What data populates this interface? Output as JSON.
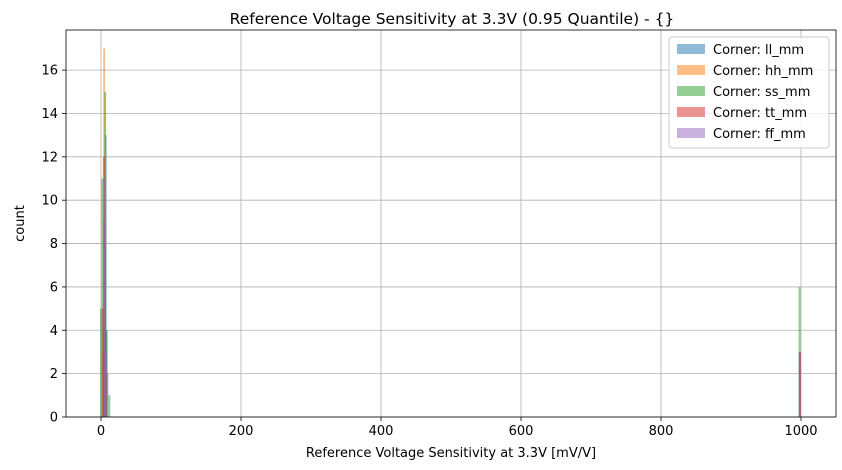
{
  "chart_data": {
    "type": "bar",
    "title": "Reference Voltage Sensitivity at 3.3V (0.95 Quantile) - {}",
    "xlabel": "Reference Voltage Sensitivity at 3.3V [mV/V]",
    "ylabel": "count",
    "xlim": [
      -50,
      1050
    ],
    "ylim": [
      0,
      17.85
    ],
    "xticks": [
      0,
      200,
      400,
      600,
      800,
      1000
    ],
    "yticks": [
      0,
      2,
      4,
      6,
      8,
      10,
      12,
      14,
      16
    ],
    "grid": true,
    "legend_position": "top-right",
    "bin_width": 1.2,
    "series": [
      {
        "name": "Corner: ll_mm",
        "color": "#1f77b4",
        "bins": [
          {
            "x": 4,
            "count": 9
          },
          {
            "x": 5.2,
            "count": 13
          },
          {
            "x": 6.4,
            "count": 4
          },
          {
            "x": 7.6,
            "count": 2
          },
          {
            "x": 997,
            "count": 3
          }
        ]
      },
      {
        "name": "Corner: hh_mm",
        "color": "#ff7f0e",
        "bins": [
          {
            "x": 2,
            "count": 3
          },
          {
            "x": 3.2,
            "count": 17
          },
          {
            "x": 4.4,
            "count": 9
          },
          {
            "x": 5.6,
            "count": 2
          },
          {
            "x": 997,
            "count": 3
          }
        ]
      },
      {
        "name": "Corner: ss_mm",
        "color": "#2ca02c",
        "bins": [
          {
            "x": -1.5,
            "count": 5
          },
          {
            "x": 0.5,
            "count": 11
          },
          {
            "x": 2.5,
            "count": 4
          },
          {
            "x": 4.5,
            "count": 15
          },
          {
            "x": 6.5,
            "count": 4
          },
          {
            "x": 10.5,
            "count": 1
          },
          {
            "x": 996.5,
            "count": 6
          }
        ]
      },
      {
        "name": "Corner: tt_mm",
        "color": "#d62728",
        "bins": [
          {
            "x": 1.5,
            "count": 5
          },
          {
            "x": 2.7,
            "count": 12
          },
          {
            "x": 3.9,
            "count": 8
          },
          {
            "x": 5.1,
            "count": 3
          },
          {
            "x": 997,
            "count": 3
          }
        ]
      },
      {
        "name": "Corner: ff_mm",
        "color": "#9467bd",
        "bins": [
          {
            "x": 3,
            "count": 9
          },
          {
            "x": 4.2,
            "count": 11
          },
          {
            "x": 5.4,
            "count": 3
          },
          {
            "x": 997,
            "count": 3
          }
        ]
      }
    ]
  }
}
